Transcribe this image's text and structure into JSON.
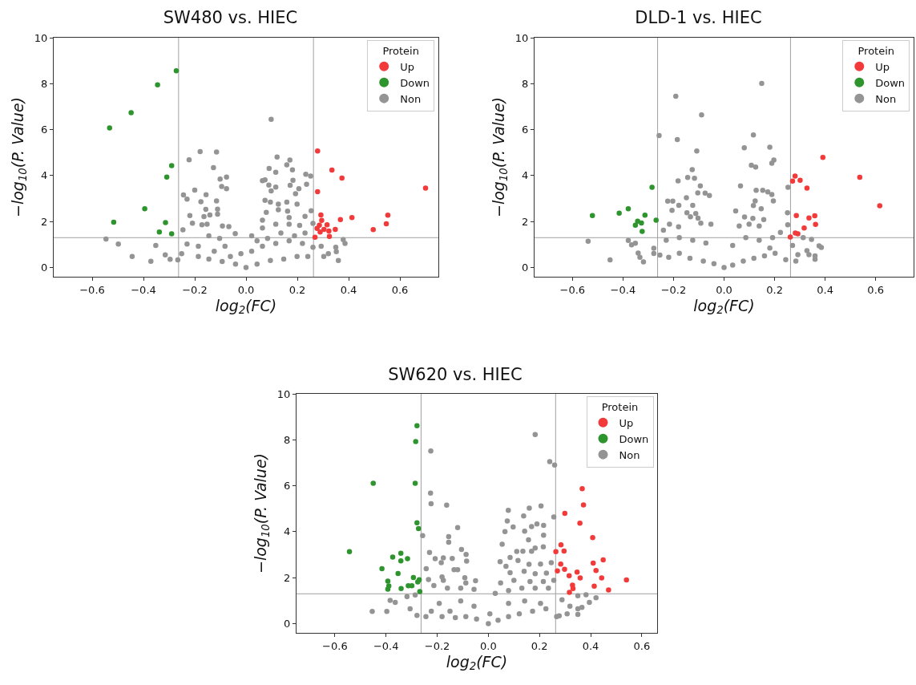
{
  "chart_data": [
    {
      "type": "scatter",
      "title": "SW480 vs. HIEC",
      "xlabel": "log$_{2}$(FC)",
      "ylabel": "−log$_{10}$(P. Value)",
      "legend_title": "Protein",
      "legend": "top right",
      "grid": false,
      "marker": "circle",
      "xlim": [
        -0.75,
        0.75
      ],
      "ylim": [
        -0.4,
        10
      ],
      "xticks": [
        {
          "value": -0.6,
          "label": "−0.6"
        },
        {
          "value": -0.4,
          "label": "−0.4"
        },
        {
          "value": -0.2,
          "label": "−0.2"
        },
        {
          "value": 0,
          "label": "0.0"
        },
        {
          "value": 0.2,
          "label": "0.2"
        },
        {
          "value": 0.4,
          "label": "0.4"
        },
        {
          "value": 0.6,
          "label": "0.6"
        }
      ],
      "yticks": [
        0,
        2,
        4,
        6,
        8,
        10
      ],
      "ref_lines": [
        {
          "axis": "x",
          "value": -0.263,
          "label": null,
          "color": "#a0a0a0"
        },
        {
          "axis": "x",
          "value": 0.263,
          "label": null,
          "color": "#a0a0a0"
        },
        {
          "axis": "y",
          "value": 1.3,
          "label": null,
          "color": "#a0a0a0"
        }
      ],
      "series": [
        {
          "name": "Up",
          "color": "#f23a3a",
          "x": [
            0.279,
            0.335,
            0.374,
            0.279,
            0.292,
            0.295,
            0.286,
            0.316,
            0.277,
            0.304,
            0.289,
            0.323,
            0.348,
            0.368,
            0.413,
            0.496,
            0.269,
            0.325,
            0.7,
            0.553,
            0.547
          ],
          "values": [
            5.07,
            4.24,
            3.89,
            3.3,
            2.29,
            2.05,
            1.84,
            1.86,
            1.7,
            1.66,
            1.55,
            1.59,
            1.66,
            2.09,
            2.17,
            1.65,
            1.32,
            1.35,
            3.46,
            2.28,
            1.9
          ]
        },
        {
          "name": "Down",
          "color": "#2e952e",
          "x": [
            -0.272,
            -0.345,
            -0.448,
            -0.532,
            -0.29,
            -0.309,
            -0.395,
            -0.516,
            -0.314,
            -0.338,
            -0.29
          ],
          "values": [
            8.56,
            7.95,
            6.74,
            6.07,
            4.43,
            3.94,
            2.56,
            1.97,
            1.96,
            1.55,
            1.47
          ]
        },
        {
          "name": "Non",
          "color": "#949494",
          "x": [
            0.098,
            -0.179,
            -0.115,
            0.121,
            0.171,
            -0.222,
            -0.127,
            0.09,
            0.116,
            0.159,
            0.181,
            0.233,
            0.252,
            -0.101,
            -0.076,
            -0.095,
            -0.076,
            -0.2,
            -0.244,
            -0.23,
            -0.156,
            -0.176,
            -0.115,
            -0.111,
            -0.157,
            -0.219,
            -0.164,
            -0.141,
            -0.111,
            -0.209,
            -0.172,
            -0.152,
            -0.092,
            -0.067,
            -0.042,
            -0.246,
            -0.546,
            -0.498,
            -0.444,
            -0.371,
            -0.315,
            -0.352,
            -0.296,
            -0.266,
            -0.251,
            -0.23,
            -0.186,
            -0.145,
            -0.093,
            -0.041,
            0.0,
            0.043,
            0.095,
            0.147,
            0.199,
            0.241,
            0.064,
            0.074,
            0.089,
            0.098,
            0.116,
            0.074,
            0.095,
            0.126,
            0.159,
            0.172,
            0.193,
            0.206,
            0.183,
            0.236,
            0.199,
            0.162,
            0.079,
            0.126,
            0.168,
            0.23,
            0.254,
            0.064,
            0.116,
            0.168,
            0.209,
            0.064,
            0.022,
            0.043,
            0.084,
            0.136,
            0.189,
            0.23,
            0.261,
            0.293,
            0.321,
            0.352,
            0.36,
            0.379,
            0.386,
            0.303,
            0.35,
            0.261,
            -0.145,
            -0.103,
            -0.082,
            -0.02,
            0.022,
            0.064,
            0.116,
            0.168,
            0.22,
            -0.186,
            -0.124,
            -0.061
          ],
          "values": [
            6.45,
            5.04,
            5.03,
            4.81,
            4.68,
            4.69,
            4.35,
            4.31,
            4.15,
            4.47,
            4.25,
            4.06,
            3.98,
            3.85,
            3.94,
            3.53,
            3.43,
            3.37,
            3.16,
            2.98,
            3.17,
            2.86,
            2.9,
            2.54,
            2.53,
            2.26,
            2.22,
            2.29,
            2.32,
            1.93,
            1.86,
            1.89,
            1.81,
            1.78,
            1.48,
            1.64,
            1.24,
            1.02,
            0.48,
            0.27,
            0.55,
            0.96,
            0.36,
            0.33,
            0.6,
            1.02,
            0.93,
            0.37,
            0.26,
            0.15,
            0.0,
            0.15,
            0.31,
            0.37,
            0.48,
            0.48,
            3.78,
            3.81,
            3.59,
            3.33,
            3.5,
            2.92,
            2.85,
            2.76,
            2.85,
            3.58,
            3.21,
            3.43,
            3.8,
            3.62,
            2.76,
            2.45,
            2.4,
            2.51,
            2.17,
            2.23,
            2.47,
            2.06,
            1.89,
            1.89,
            1.83,
            1.72,
            1.38,
            1.16,
            1.27,
            1.5,
            1.38,
            1.5,
            1.92,
            0.93,
            0.6,
            0.69,
            0.31,
            1.21,
            1.05,
            0.48,
            0.88,
            0.88,
            1.38,
            1.27,
            0.93,
            0.6,
            0.71,
            0.93,
            1.05,
            1.16,
            1.05,
            0.48,
            0.71,
            0.48
          ]
        }
      ]
    },
    {
      "type": "scatter",
      "title": "DLD-1 vs. HIEC",
      "xlabel": "log$_{2}$(FC)",
      "ylabel": "−log$_{10}$(P. Value)",
      "legend_title": "Protein",
      "legend": "top right",
      "grid": false,
      "marker": "circle",
      "xlim": [
        -0.75,
        0.75
      ],
      "ylim": [
        -0.4,
        10
      ],
      "xticks": [
        {
          "value": -0.6,
          "label": "−0.6"
        },
        {
          "value": -0.4,
          "label": "−0.4"
        },
        {
          "value": -0.2,
          "label": "−0.2"
        },
        {
          "value": 0,
          "label": "0.0"
        },
        {
          "value": 0.2,
          "label": "0.2"
        },
        {
          "value": 0.4,
          "label": "0.4"
        },
        {
          "value": 0.6,
          "label": "0.6"
        }
      ],
      "yticks": [
        0,
        2,
        4,
        6,
        8,
        10
      ],
      "ref_lines": [
        {
          "axis": "x",
          "value": -0.263,
          "label": null,
          "color": "#a0a0a0"
        },
        {
          "axis": "x",
          "value": 0.263,
          "label": null,
          "color": "#a0a0a0"
        },
        {
          "axis": "y",
          "value": 1.3,
          "label": null,
          "color": "#a0a0a0"
        }
      ],
      "series": [
        {
          "name": "Up",
          "color": "#f23a3a",
          "x": [
            0.391,
            0.537,
            0.616,
            0.281,
            0.271,
            0.301,
            0.328,
            0.286,
            0.336,
            0.359,
            0.362,
            0.317,
            0.282,
            0.292,
            0.262
          ],
          "values": [
            4.79,
            3.93,
            2.69,
            3.98,
            3.76,
            3.8,
            3.46,
            2.26,
            2.16,
            2.25,
            1.88,
            1.72,
            1.5,
            1.47,
            1.33
          ]
        },
        {
          "name": "Down",
          "color": "#2e952e",
          "x": [
            -0.521,
            -0.415,
            -0.379,
            -0.313,
            -0.342,
            -0.327,
            -0.351,
            -0.324,
            -0.285,
            -0.269
          ],
          "values": [
            2.26,
            2.37,
            2.56,
            2.28,
            2.02,
            1.94,
            1.84,
            1.57,
            3.49,
            2.06
          ]
        },
        {
          "name": "Non",
          "color": "#949494",
          "x": [
            0.149,
            -0.191,
            -0.089,
            -0.257,
            -0.185,
            0.116,
            0.08,
            0.181,
            -0.108,
            0.197,
            0.189,
            0.108,
            0.125,
            -0.126,
            -0.144,
            -0.117,
            -0.182,
            -0.094,
            0.065,
            -0.104,
            -0.075,
            -0.058,
            0.127,
            0.153,
            0.173,
            0.189,
            0.253,
            -0.149,
            -0.223,
            -0.203,
            -0.179,
            -0.124,
            -0.206,
            -0.147,
            -0.112,
            -0.133,
            -0.103,
            -0.092,
            -0.052,
            0.123,
            0.195,
            0.116,
            0.147,
            0.046,
            0.081,
            0.114,
            0.157,
            0.06,
            0.099,
            0.139,
            0.251,
            0.252,
            -0.216,
            -0.18,
            -0.24,
            -0.538,
            -0.451,
            -0.379,
            -0.366,
            -0.351,
            -0.34,
            -0.333,
            -0.319,
            -0.278,
            -0.278,
            -0.254,
            -0.229,
            -0.177,
            -0.124,
            -0.072,
            -0.219,
            -0.177,
            -0.135,
            -0.082,
            -0.04,
            0.0,
            0.034,
            0.076,
            0.118,
            0.16,
            0.202,
            0.244,
            0.034,
            0.086,
            0.139,
            0.192,
            0.223,
            0.181,
            0.271,
            0.313,
            0.346,
            0.328,
            0.336,
            0.36,
            0.36,
            0.376,
            0.385,
            0.284,
            0.292
          ],
          "values": [
            8.01,
            7.45,
            6.64,
            5.74,
            5.57,
            5.77,
            5.21,
            5.24,
            5.07,
            4.68,
            4.54,
            4.45,
            4.37,
            4.26,
            3.92,
            3.88,
            3.77,
            3.55,
            3.55,
            3.25,
            3.24,
            3.13,
            3.36,
            3.36,
            3.29,
            3.18,
            3.49,
            3.04,
            2.89,
            2.89,
            2.71,
            2.71,
            2.49,
            2.38,
            2.35,
            2.21,
            2.15,
            1.93,
            1.89,
            2.9,
            2.9,
            2.7,
            2.56,
            2.46,
            2.2,
            2.14,
            2.09,
            1.81,
            1.89,
            1.81,
            2.38,
            1.86,
            1.89,
            1.77,
            1.62,
            1.14,
            0.33,
            1.18,
            0.99,
            1.06,
            0.63,
            0.45,
            0.25,
            0.84,
            0.61,
            0.54,
            1.19,
            1.3,
            1.19,
            1.07,
            0.45,
            0.62,
            0.4,
            0.28,
            0.17,
            0.0,
            0.11,
            0.28,
            0.4,
            0.51,
            0.62,
            0.34,
            0.96,
            1.3,
            1.19,
            1.3,
            1.53,
            0.85,
            0.96,
            1.3,
            1.22,
            0.73,
            0.56,
            0.51,
            0.36,
            0.94,
            0.87,
            0.28,
            0.56
          ]
        }
      ]
    },
    {
      "type": "scatter",
      "title": "SW620 vs. HIEC",
      "xlabel": "log$_{2}$(FC)",
      "ylabel": "−log$_{10}$(P. Value)",
      "legend_title": "Protein",
      "legend": "top right",
      "grid": false,
      "marker": "circle",
      "xlim": [
        -0.75,
        0.66
      ],
      "ylim": [
        -0.4,
        10
      ],
      "xticks": [
        {
          "value": -0.6,
          "label": "−0.6"
        },
        {
          "value": -0.4,
          "label": "−0.4"
        },
        {
          "value": -0.2,
          "label": "−0.2"
        },
        {
          "value": 0,
          "label": "0.0"
        },
        {
          "value": 0.2,
          "label": "0.2"
        },
        {
          "value": 0.4,
          "label": "0.4"
        },
        {
          "value": 0.6,
          "label": "0.6"
        }
      ],
      "yticks": [
        0,
        2,
        4,
        6,
        8,
        10
      ],
      "ref_lines": [
        {
          "axis": "x",
          "value": -0.263,
          "label": null,
          "color": "#a0a0a0"
        },
        {
          "axis": "x",
          "value": 0.263,
          "label": null,
          "color": "#a0a0a0"
        },
        {
          "axis": "y",
          "value": 1.3,
          "label": null,
          "color": "#a0a0a0"
        }
      ],
      "series": [
        {
          "name": "Up",
          "color": "#f23a3a",
          "x": [
            0.367,
            0.372,
            0.299,
            0.358,
            0.408,
            0.284,
            0.264,
            0.296,
            0.283,
            0.27,
            0.298,
            0.316,
            0.347,
            0.359,
            0.41,
            0.421,
            0.449,
            0.443,
            0.54,
            0.47,
            0.414,
            0.329,
            0.331,
            0.317
          ],
          "values": [
            5.87,
            5.17,
            4.8,
            4.37,
            3.74,
            3.43,
            3.13,
            3.16,
            2.59,
            2.3,
            2.37,
            2.09,
            2.24,
            1.99,
            2.64,
            2.31,
            2.78,
            1.99,
            1.9,
            1.47,
            1.63,
            1.68,
            1.53,
            1.36
          ]
        },
        {
          "name": "Down",
          "color": "#2e952e",
          "x": [
            -0.279,
            -0.284,
            -0.286,
            -0.45,
            -0.279,
            -0.273,
            -0.543,
            -0.342,
            -0.374,
            -0.342,
            -0.316,
            -0.416,
            -0.353,
            -0.293,
            -0.393,
            -0.27,
            -0.276,
            -0.389,
            -0.393,
            -0.341,
            -0.313,
            -0.299,
            -0.268
          ],
          "values": [
            8.61,
            7.92,
            6.11,
            6.11,
            4.39,
            4.14,
            3.13,
            3.06,
            2.9,
            2.73,
            2.83,
            2.39,
            2.18,
            2.01,
            1.85,
            1.91,
            1.82,
            1.64,
            1.5,
            1.53,
            1.65,
            1.65,
            1.4
          ]
        },
        {
          "name": "Non",
          "color": "#949494",
          "x": [
            0.183,
            -0.225,
            0.24,
            0.259,
            -0.226,
            -0.224,
            -0.163,
            0.206,
            0.16,
            0.078,
            0.138,
            0.256,
            0.074,
            0.097,
            0.19,
            0.216,
            0.169,
            0.142,
            -0.12,
            0.065,
            -0.257,
            -0.155,
            0.216,
            0.157,
            -0.155,
            0.054,
            -0.105,
            0.183,
            0.215,
            0.135,
            -0.23,
            -0.087,
            0.111,
            0.169,
            -0.208,
            -0.176,
            -0.141,
            -0.085,
            0.085,
            -0.184,
            0.046,
            0.116,
            0.159,
            0.204,
            0.246,
            -0.243,
            -0.134,
            -0.12,
            0.069,
            0.085,
            0.14,
            0.183,
            0.227,
            -0.181,
            -0.092,
            -0.234,
            -0.176,
            -0.088,
            -0.05,
            0.048,
            0.1,
            0.163,
            0.215,
            0.256,
            -0.213,
            -0.16,
            -0.108,
            -0.056,
            0.027,
            0.079,
            0.131,
            0.183,
            0.235,
            0.382,
            0.421,
            0.395,
            0.35,
            0.288,
            0.319,
            0.35,
            0.366,
            0.35,
            0.308,
            0.277,
            -0.454,
            -0.397,
            -0.384,
            -0.364,
            -0.318,
            -0.286,
            -0.306,
            -0.279,
            -0.244,
            -0.223,
            -0.192,
            -0.15,
            -0.181,
            -0.129,
            -0.088,
            -0.046,
            0.0,
            0.038,
            0.079,
            0.121,
            0.173,
            0.225,
            0.267,
            0.079,
            0.142,
            0.204,
            -0.108,
            -0.056,
            0.006
          ],
          "values": [
            8.23,
            7.51,
            7.05,
            6.9,
            5.68,
            5.22,
            5.16,
            5.12,
            5.03,
            4.93,
            4.69,
            4.64,
            4.47,
            4.21,
            4.34,
            4.28,
            4.22,
            4.02,
            4.18,
            4.01,
            3.83,
            3.79,
            3.85,
            3.65,
            3.54,
            3.46,
            3.23,
            3.29,
            3.34,
            3.15,
            3.1,
            3.01,
            3.14,
            3.15,
            2.83,
            2.86,
            2.84,
            2.72,
            2.88,
            2.65,
            2.7,
            2.75,
            2.58,
            2.59,
            2.65,
            2.39,
            2.35,
            2.35,
            2.5,
            2.22,
            2.28,
            2.17,
            2.2,
            2.03,
            2.0,
            1.92,
            1.89,
            1.77,
            1.87,
            1.77,
            1.89,
            1.83,
            1.83,
            1.89,
            1.66,
            1.55,
            1.55,
            1.49,
            1.32,
            1.44,
            1.55,
            1.55,
            1.55,
            1.26,
            1.13,
            0.93,
            1.21,
            1.04,
            0.76,
            0.65,
            0.71,
            0.4,
            0.43,
            0.34,
            0.53,
            0.53,
            1.01,
            0.93,
            1.18,
            1.25,
            0.65,
            0.36,
            0.31,
            0.54,
            0.88,
            0.54,
            0.31,
            0.26,
            0.31,
            0.2,
            0.0,
            0.15,
            0.31,
            0.43,
            0.54,
            0.65,
            0.31,
            0.88,
            0.99,
            0.88,
            0.99,
            0.76,
            0.43
          ]
        }
      ]
    }
  ]
}
